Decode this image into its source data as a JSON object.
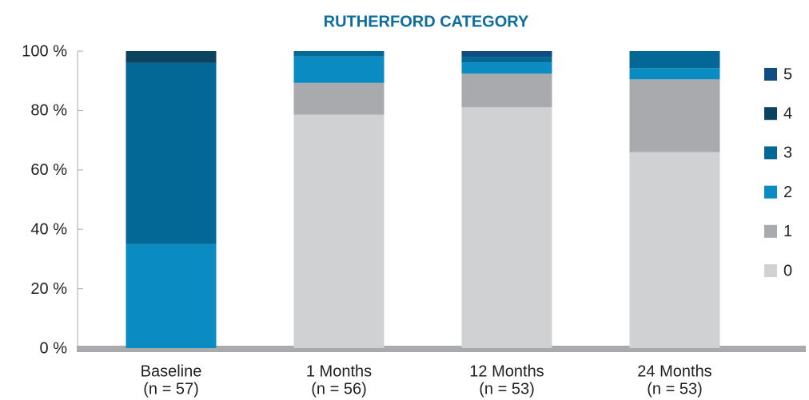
{
  "chart_data": {
    "type": "stacked_bar",
    "title": "RUTHERFORD CATEGORY",
    "categories": [
      [
        "Baseline",
        "(n = 57)"
      ],
      [
        "1 Months",
        "(n = 56)"
      ],
      [
        "12 Months",
        "(n = 53)"
      ],
      [
        "24 Months",
        "(n = 53)"
      ]
    ],
    "series": [
      {
        "name": "0",
        "color": "#d0d1d3",
        "values": [
          0,
          78.6,
          81.1,
          66.0
        ]
      },
      {
        "name": "1",
        "color": "#a9aaad",
        "values": [
          0,
          10.7,
          11.3,
          24.5
        ]
      },
      {
        "name": "2",
        "color": "#0a8cc2",
        "values": [
          35,
          8.9,
          3.8,
          3.8
        ]
      },
      {
        "name": "3",
        "color": "#036895",
        "values": [
          61,
          1.8,
          1.9,
          5.7
        ]
      },
      {
        "name": "4",
        "color": "#0c4460",
        "values": [
          4,
          0,
          0,
          0
        ]
      },
      {
        "name": "5",
        "color": "#124d82",
        "values": [
          0,
          0,
          1.9,
          0
        ]
      }
    ],
    "ylim": [
      0,
      100
    ],
    "yticks": [
      {
        "value": 0,
        "label": "0 %"
      },
      {
        "value": 20,
        "label": "20 %"
      },
      {
        "value": 40,
        "label": "40 %"
      },
      {
        "value": 60,
        "label": "60 %"
      },
      {
        "value": 80,
        "label": "80 %"
      },
      {
        "value": 100,
        "label": "100 %"
      }
    ],
    "legend": "right"
  }
}
